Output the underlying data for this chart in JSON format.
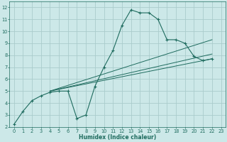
{
  "xlabel": "Humidex (Indice chaleur)",
  "bg_color": "#cce8e8",
  "grid_color": "#aacccc",
  "line_color": "#1e6b5e",
  "xlim": [
    -0.5,
    23.5
  ],
  "ylim": [
    2,
    12.5
  ],
  "xticks": [
    0,
    1,
    2,
    3,
    4,
    5,
    6,
    7,
    8,
    9,
    10,
    11,
    12,
    13,
    14,
    15,
    16,
    17,
    18,
    19,
    20,
    21,
    22,
    23
  ],
  "yticks": [
    2,
    3,
    4,
    5,
    6,
    7,
    8,
    9,
    10,
    11,
    12
  ],
  "main_x": [
    0,
    1,
    2,
    3,
    4,
    5,
    6,
    7,
    8,
    9,
    10,
    11,
    12,
    13,
    14,
    15,
    16,
    17,
    18,
    19,
    20,
    21,
    22
  ],
  "main_y": [
    2.2,
    3.3,
    4.2,
    4.6,
    4.9,
    5.0,
    5.0,
    2.7,
    3.0,
    5.4,
    7.0,
    8.4,
    10.5,
    11.8,
    11.55,
    11.55,
    11.0,
    9.3,
    9.3,
    9.0,
    7.9,
    7.55,
    7.7
  ],
  "line2_x": [
    4,
    22
  ],
  "line2_y": [
    5.0,
    7.7
  ],
  "line3_x": [
    4,
    22
  ],
  "line3_y": [
    5.0,
    8.1
  ],
  "line4_x": [
    4,
    22
  ],
  "line4_y": [
    5.0,
    9.3
  ],
  "marker_size": 2.5
}
